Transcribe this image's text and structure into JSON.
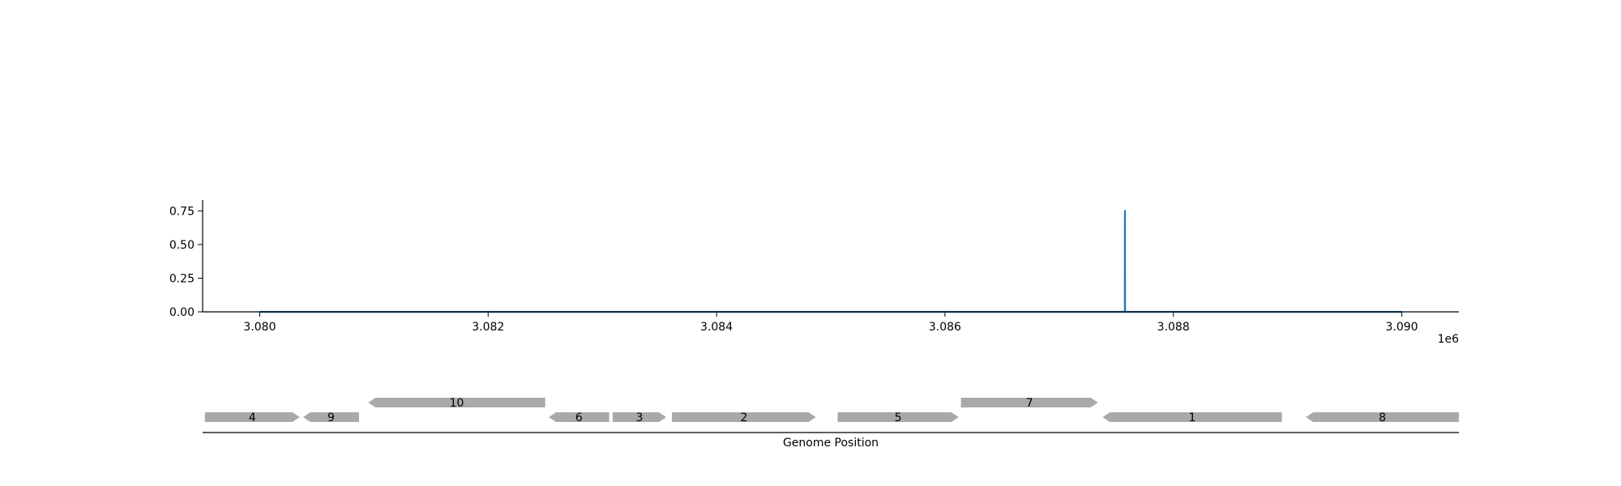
{
  "chart_data": [
    {
      "type": "line",
      "x_tick_labels": [
        "3.080",
        "3.082",
        "3.084",
        "3.086",
        "3.088",
        "3.090"
      ],
      "x_ticks": [
        3080000,
        3082000,
        3084000,
        3086000,
        3088000,
        3090000
      ],
      "x_offset_label": "1e6",
      "y_tick_labels": [
        "0.00",
        "0.25",
        "0.50",
        "0.75"
      ],
      "y_ticks": [
        0,
        0.25,
        0.5,
        0.75
      ],
      "xlim": [
        3079500,
        3090500
      ],
      "ylim": [
        0,
        0.83
      ],
      "grid": false,
      "series": [
        {
          "color": "#1f77b4",
          "x": [
            3080000,
            3087575,
            3087576,
            3087577,
            3090000
          ],
          "y": [
            0,
            0,
            0.75,
            0,
            0
          ]
        }
      ]
    },
    {
      "type": "gene_map",
      "xlabel": "Genome Position",
      "xlim": [
        3079500,
        3090500
      ],
      "feature_color": "#a9a9a9",
      "features": [
        {
          "label": "4",
          "start": 3079520,
          "end": 3080350,
          "strand": "+",
          "row": 0
        },
        {
          "label": "9",
          "start": 3080380,
          "end": 3080870,
          "strand": "-",
          "row": 0
        },
        {
          "label": "10",
          "start": 3080950,
          "end": 3082500,
          "strand": "-",
          "row": 1
        },
        {
          "label": "6",
          "start": 3082530,
          "end": 3083060,
          "strand": "-",
          "row": 0
        },
        {
          "label": "3",
          "start": 3083090,
          "end": 3083560,
          "strand": "+",
          "row": 0
        },
        {
          "label": "2",
          "start": 3083610,
          "end": 3084870,
          "strand": "+",
          "row": 0
        },
        {
          "label": "5",
          "start": 3085060,
          "end": 3086120,
          "strand": "+",
          "row": 0
        },
        {
          "label": "7",
          "start": 3086140,
          "end": 3087340,
          "strand": "+",
          "row": 1
        },
        {
          "label": "1",
          "start": 3087380,
          "end": 3088950,
          "strand": "-",
          "row": 0
        },
        {
          "label": "8",
          "start": 3089160,
          "end": 3090500,
          "strand": "-",
          "row": 0
        }
      ]
    }
  ]
}
